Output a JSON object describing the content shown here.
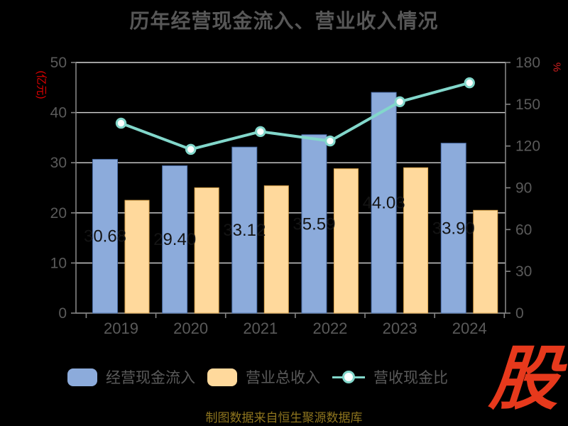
{
  "title": "历年经营现金流入、营业收入情况",
  "source_note": "制图数据来自恒生聚源数据库",
  "logo_text": "股",
  "colors": {
    "background": "#000000",
    "title_text": "#575757",
    "axis_text": "#5a5a5a",
    "axis_line": "#848484",
    "gridline": "#d6d6d6",
    "unit_label_red": "#e60000",
    "bar_label": "#141414",
    "cash_bar": "#8cabdb",
    "cash_bar_border": "#4e70a9",
    "revenue_bar": "#ffd99c",
    "revenue_bar_border": "#dfa850",
    "ratio_line": "#82d7cb",
    "logo_red": "#e7391c",
    "source_text": "#8d741e"
  },
  "left_axis": {
    "unit_label": "(亿元)",
    "ticks": [
      0,
      10,
      20,
      30,
      40,
      50
    ],
    "max": 50
  },
  "right_axis": {
    "unit_label": "%",
    "ticks": [
      0,
      30,
      60,
      90,
      120,
      150,
      180
    ],
    "max": 180
  },
  "chart_data": {
    "type": "bar",
    "subtype": "grouped-bars-with-line",
    "title": "历年经营现金流入、营业收入情况",
    "categories": [
      "2019",
      "2020",
      "2021",
      "2022",
      "2023",
      "2024"
    ],
    "ylim_left": [
      0,
      50
    ],
    "ylim_right": [
      0,
      180
    ],
    "grid": true,
    "legend_position": "bottom",
    "series": [
      {
        "name": "经营现金流入",
        "type": "bar",
        "yaxis": "left",
        "color": "#8cabdb",
        "border_color": "#4e70a9",
        "values": [
          30.68,
          29.4,
          33.12,
          35.59,
          44.03,
          33.9
        ],
        "data_labels": [
          "30.68",
          "29.40",
          "33.12",
          "35.59",
          "44.03",
          "33.90"
        ]
      },
      {
        "name": "营业总收入",
        "type": "bar",
        "yaxis": "left",
        "color": "#ffd99c",
        "border_color": "#dfa850",
        "values": [
          22.5,
          25.0,
          25.4,
          28.8,
          29.0,
          20.5
        ]
      },
      {
        "name": "营收现金比",
        "type": "line",
        "yaxis": "right",
        "color": "#82d7cb",
        "marker": "open-circle",
        "values": [
          136.4,
          117.6,
          130.4,
          123.6,
          151.8,
          165.4
        ]
      }
    ]
  },
  "legend": {
    "items": [
      {
        "label": "经营现金流入"
      },
      {
        "label": "营业总收入"
      },
      {
        "label": "营收现金比"
      }
    ]
  }
}
